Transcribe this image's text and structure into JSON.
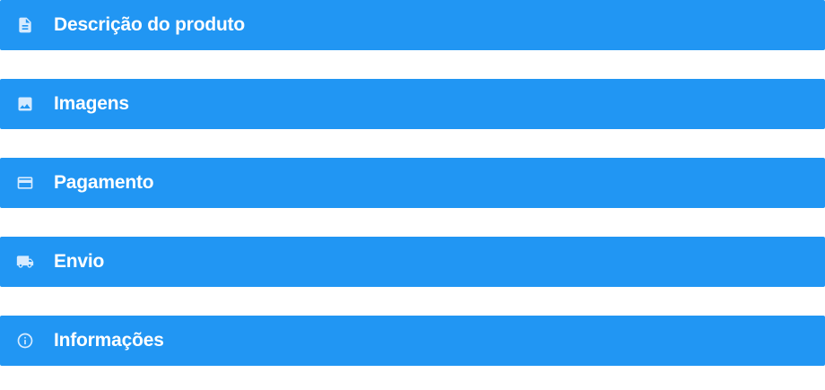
{
  "theme": {
    "header_bg": "#2196F3",
    "icon_color": "#D6EBFF",
    "text_color": "#FFFFFF"
  },
  "accordion": {
    "sections": [
      {
        "label": "Descrição do produto",
        "icon": "document-icon"
      },
      {
        "label": "Imagens",
        "icon": "image-icon"
      },
      {
        "label": "Pagamento",
        "icon": "credit-card-icon"
      },
      {
        "label": "Envio",
        "icon": "truck-icon"
      },
      {
        "label": "Informações",
        "icon": "info-icon"
      }
    ]
  }
}
